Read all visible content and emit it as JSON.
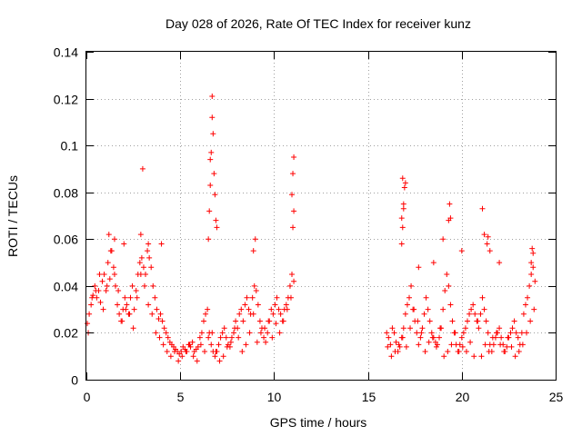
{
  "chart_data": {
    "type": "scatter",
    "title": "Day 028 of 2026, Rate Of TEC Index for receiver kunz",
    "xlabel": "GPS time / hours",
    "ylabel": "ROTI / TECUs",
    "xlim": [
      0,
      25
    ],
    "ylim": [
      0,
      0.14
    ],
    "xticks": [
      "0",
      "5",
      "10",
      "15",
      "20",
      "25"
    ],
    "yticks": [
      "0",
      "0.02",
      "0.04",
      "0.06",
      "0.08",
      "0.1",
      "0.12",
      "0.14"
    ],
    "grid": true,
    "marker": "+",
    "color": "#ff0000",
    "series": [
      {
        "x": [
          0.05,
          0.15,
          0.25,
          0.35,
          0.45,
          0.55,
          0.65,
          0.75,
          0.85,
          0.95,
          1.05,
          1.15,
          1.25,
          1.35,
          1.45,
          1.55,
          1.65,
          1.75,
          1.85,
          1.95,
          2.05,
          2.15,
          2.25,
          2.35,
          2.45,
          2.55,
          2.65,
          2.75,
          2.85,
          2.95,
          3.05,
          3.15,
          3.25,
          3.35,
          3.45,
          3.55,
          3.65,
          3.75,
          3.85,
          3.95,
          4.05,
          4.15,
          4.25,
          4.35,
          4.45,
          4.55,
          4.65,
          4.75,
          4.85,
          4.95,
          5.05,
          5.15,
          5.25,
          5.35,
          5.45,
          5.55,
          5.65,
          5.75,
          5.85,
          5.95,
          6.05,
          6.15,
          6.25,
          6.35,
          6.45,
          6.55,
          6.65,
          6.75,
          6.85,
          6.95,
          7.05,
          7.15,
          7.25,
          7.35,
          7.45,
          7.55,
          7.65,
          7.75,
          7.85,
          7.95,
          8.05,
          8.15,
          8.25,
          8.35,
          8.45,
          8.55,
          8.65,
          8.75,
          8.85,
          8.95,
          9.05,
          9.15,
          9.25,
          9.35,
          9.45,
          9.55,
          9.65,
          9.75,
          9.85,
          9.95,
          10.05,
          10.15,
          10.25,
          10.35,
          10.45,
          10.55,
          10.65,
          10.75,
          10.85,
          10.95,
          11.05,
          0.1,
          0.3,
          0.5,
          0.7,
          0.9,
          1.1,
          1.3,
          1.5,
          1.7,
          1.9,
          2.1,
          2.3,
          2.5,
          2.7,
          2.9,
          3.1,
          3.3,
          3.5,
          3.7,
          3.9,
          4.1,
          4.3,
          4.5,
          4.7,
          4.9,
          5.1,
          5.3,
          5.5,
          5.7,
          5.9,
          6.1,
          6.3,
          6.5,
          6.7,
          6.9,
          7.1,
          7.3,
          7.5,
          7.7,
          7.9,
          8.1,
          8.3,
          8.5,
          8.7,
          8.9,
          9.1,
          9.3,
          9.5,
          9.7,
          9.9,
          10.1,
          10.3,
          10.5,
          10.7,
          10.9,
          6.5,
          6.55,
          6.6,
          6.6,
          6.65,
          6.7,
          6.7,
          6.75,
          6.8,
          6.85,
          6.9,
          6.95,
          3.0,
          2.9,
          1.2,
          1.5,
          2.0,
          3.3,
          4.0,
          11.05,
          11.0,
          10.95,
          11.05,
          11.0,
          9.0,
          8.9,
          16.0,
          16.1,
          16.2,
          16.3,
          16.4,
          16.5,
          16.6,
          16.7,
          16.8,
          16.9,
          17.0,
          17.1,
          17.2,
          17.3,
          17.4,
          17.5,
          17.6,
          17.7,
          17.8,
          17.9,
          18.0,
          18.1,
          18.2,
          18.3,
          18.4,
          18.5,
          18.6,
          18.7,
          18.8,
          18.9,
          19.0,
          19.1,
          19.2,
          19.3,
          19.4,
          19.5,
          19.6,
          19.7,
          19.8,
          19.9,
          20.0,
          20.1,
          20.2,
          20.3,
          20.4,
          20.5,
          20.6,
          20.7,
          20.8,
          20.9,
          21.0,
          21.1,
          21.2,
          21.3,
          21.4,
          21.5,
          21.6,
          21.7,
          21.8,
          21.9,
          22.0,
          22.1,
          22.2,
          22.3,
          22.4,
          22.5,
          22.6,
          22.7,
          22.8,
          22.9,
          23.0,
          23.1,
          23.2,
          23.3,
          23.4,
          23.5,
          23.6,
          23.7,
          23.8,
          23.9,
          16.05,
          16.25,
          16.45,
          16.65,
          16.85,
          17.05,
          17.25,
          17.45,
          17.65,
          17.85,
          18.05,
          18.25,
          18.45,
          18.65,
          18.85,
          19.05,
          19.25,
          19.45,
          19.65,
          19.85,
          20.05,
          20.25,
          20.45,
          20.65,
          20.85,
          21.05,
          21.25,
          21.45,
          21.65,
          21.85,
          22.05,
          22.25,
          22.45,
          22.65,
          22.85,
          23.05,
          23.25,
          23.45,
          23.65,
          23.85,
          16.8,
          16.85,
          16.9,
          16.95,
          16.85,
          16.9,
          16.8,
          17.0,
          19.35,
          19.4,
          19.3,
          21.1,
          21.2,
          21.35,
          21.4,
          21.5,
          23.7,
          23.75,
          23.8,
          19.0,
          20.0,
          22.0,
          18.5,
          17.7
        ],
        "y": [
          0.024,
          0.028,
          0.032,
          0.036,
          0.04,
          0.035,
          0.038,
          0.033,
          0.042,
          0.045,
          0.038,
          0.05,
          0.043,
          0.055,
          0.048,
          0.04,
          0.032,
          0.028,
          0.025,
          0.03,
          0.035,
          0.032,
          0.028,
          0.035,
          0.04,
          0.03,
          0.038,
          0.045,
          0.05,
          0.052,
          0.048,
          0.045,
          0.055,
          0.052,
          0.048,
          0.04,
          0.035,
          0.03,
          0.026,
          0.028,
          0.025,
          0.022,
          0.02,
          0.018,
          0.016,
          0.015,
          0.014,
          0.013,
          0.012,
          0.011,
          0.012,
          0.014,
          0.013,
          0.012,
          0.015,
          0.014,
          0.016,
          0.012,
          0.013,
          0.014,
          0.018,
          0.02,
          0.025,
          0.028,
          0.03,
          0.02,
          0.015,
          0.012,
          0.01,
          0.012,
          0.015,
          0.018,
          0.02,
          0.022,
          0.018,
          0.015,
          0.014,
          0.018,
          0.02,
          0.025,
          0.022,
          0.028,
          0.03,
          0.025,
          0.032,
          0.035,
          0.03,
          0.028,
          0.035,
          0.04,
          0.038,
          0.032,
          0.025,
          0.022,
          0.018,
          0.016,
          0.02,
          0.025,
          0.03,
          0.028,
          0.032,
          0.035,
          0.03,
          0.028,
          0.025,
          0.03,
          0.032,
          0.035,
          0.04,
          0.045,
          0.042,
          0.02,
          0.035,
          0.038,
          0.045,
          0.03,
          0.04,
          0.055,
          0.045,
          0.038,
          0.025,
          0.03,
          0.028,
          0.022,
          0.035,
          0.045,
          0.04,
          0.032,
          0.028,
          0.02,
          0.018,
          0.015,
          0.012,
          0.01,
          0.012,
          0.008,
          0.01,
          0.012,
          0.015,
          0.01,
          0.008,
          0.015,
          0.012,
          0.018,
          0.02,
          0.012,
          0.008,
          0.01,
          0.014,
          0.016,
          0.022,
          0.018,
          0.012,
          0.015,
          0.02,
          0.028,
          0.016,
          0.02,
          0.022,
          0.025,
          0.018,
          0.024,
          0.02,
          0.025,
          0.03,
          0.035,
          0.06,
          0.072,
          0.083,
          0.094,
          0.097,
          0.121,
          0.112,
          0.105,
          0.088,
          0.079,
          0.068,
          0.065,
          0.09,
          0.062,
          0.062,
          0.06,
          0.058,
          0.058,
          0.058,
          0.095,
          0.088,
          0.079,
          0.072,
          0.065,
          0.06,
          0.055,
          0.02,
          0.018,
          0.015,
          0.022,
          0.02,
          0.016,
          0.012,
          0.014,
          0.018,
          0.022,
          0.028,
          0.032,
          0.035,
          0.04,
          0.03,
          0.025,
          0.02,
          0.015,
          0.018,
          0.022,
          0.028,
          0.035,
          0.03,
          0.025,
          0.02,
          0.018,
          0.016,
          0.015,
          0.018,
          0.022,
          0.03,
          0.038,
          0.045,
          0.04,
          0.032,
          0.025,
          0.02,
          0.015,
          0.012,
          0.015,
          0.018,
          0.02,
          0.022,
          0.025,
          0.028,
          0.03,
          0.032,
          0.028,
          0.025,
          0.022,
          0.028,
          0.035,
          0.03,
          0.025,
          0.02,
          0.015,
          0.012,
          0.015,
          0.018,
          0.02,
          0.022,
          0.018,
          0.015,
          0.012,
          0.014,
          0.018,
          0.02,
          0.022,
          0.025,
          0.02,
          0.018,
          0.015,
          0.02,
          0.028,
          0.032,
          0.035,
          0.04,
          0.045,
          0.048,
          0.042,
          0.014,
          0.01,
          0.012,
          0.015,
          0.018,
          0.014,
          0.022,
          0.03,
          0.025,
          0.02,
          0.012,
          0.016,
          0.018,
          0.014,
          0.022,
          0.01,
          0.012,
          0.015,
          0.02,
          0.012,
          0.014,
          0.012,
          0.016,
          0.01,
          0.025,
          0.01,
          0.015,
          0.012,
          0.018,
          0.02,
          0.015,
          0.012,
          0.018,
          0.014,
          0.01,
          0.012,
          0.015,
          0.02,
          0.025,
          0.03,
          0.058,
          0.065,
          0.075,
          0.082,
          0.086,
          0.073,
          0.069,
          0.084,
          0.075,
          0.069,
          0.068,
          0.073,
          0.062,
          0.058,
          0.061,
          0.055,
          0.05,
          0.056,
          0.054,
          0.06,
          0.055,
          0.05,
          0.05,
          0.048
        ]
      }
    ]
  }
}
